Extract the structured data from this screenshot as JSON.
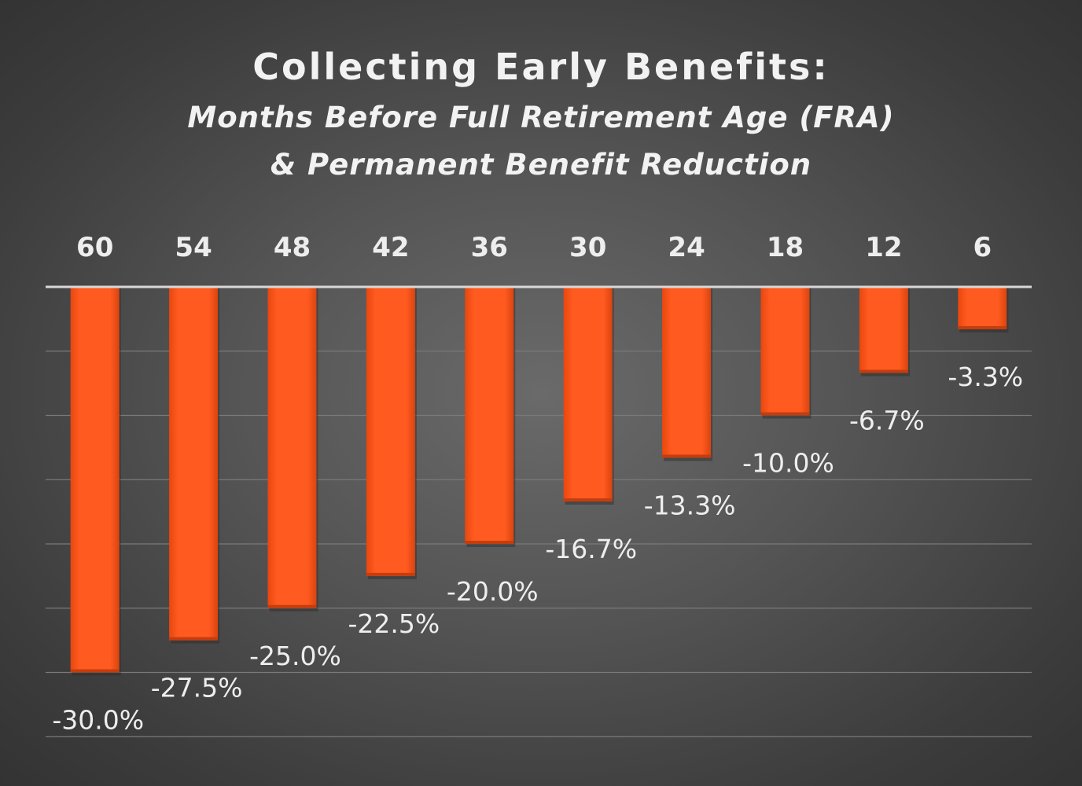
{
  "chart_data": {
    "type": "bar",
    "title": "Collecting Early Benefits:",
    "subtitle_line1": "Months Before Full Retirement Age (FRA)",
    "subtitle_line2": "& Permanent Benefit Reduction",
    "categories": [
      "60",
      "54",
      "48",
      "42",
      "36",
      "30",
      "24",
      "18",
      "12",
      "6"
    ],
    "values": [
      -30.0,
      -27.5,
      -25.0,
      -22.5,
      -20.0,
      -16.7,
      -13.3,
      -10.0,
      -6.7,
      -3.3
    ],
    "value_labels": [
      "-30.0%",
      "-27.5%",
      "-25.0%",
      "-22.5%",
      "-20.0%",
      "-16.7%",
      "-13.3%",
      "-10.0%",
      "-6.7%",
      "-3.3%"
    ],
    "xlabel": "",
    "ylabel": "",
    "ylim": [
      -35,
      0
    ],
    "gridlines": [
      0,
      -5,
      -10,
      -15,
      -20,
      -25,
      -30,
      -35
    ],
    "category_axis_position": "top",
    "grid": true,
    "colors": {
      "bar": "#ff5a1f",
      "bar_shadow": "#c43d0e",
      "grid": "#7a7a7a",
      "axis": "#d8d8d8",
      "text": "#eeeeee"
    }
  }
}
